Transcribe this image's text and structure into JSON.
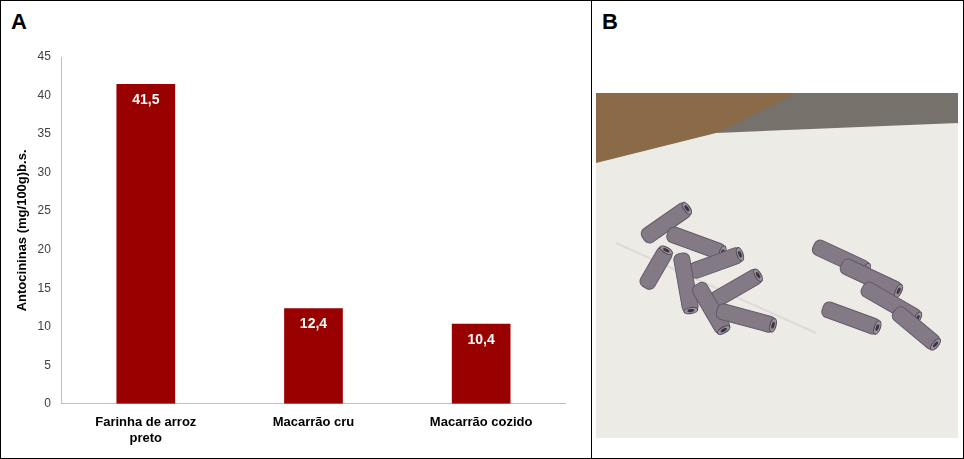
{
  "panel_labels": [
    "A",
    "B"
  ],
  "chart_data": {
    "type": "bar",
    "y_label": "Antocininas (mg/100g)b.s.",
    "categories": [
      "Farinha de arroz preto",
      "Macarrão cru",
      "Macarrão cozido"
    ],
    "values": [
      41.5,
      12.4,
      10.4
    ],
    "value_labels": [
      "41,5",
      "12,4",
      "10,4"
    ],
    "color": "#990000",
    "ylim": [
      0,
      45
    ],
    "yticks": [
      0,
      5,
      10,
      15,
      20,
      25,
      30,
      35,
      40,
      45
    ],
    "grid": false,
    "data_labels": true
  }
}
